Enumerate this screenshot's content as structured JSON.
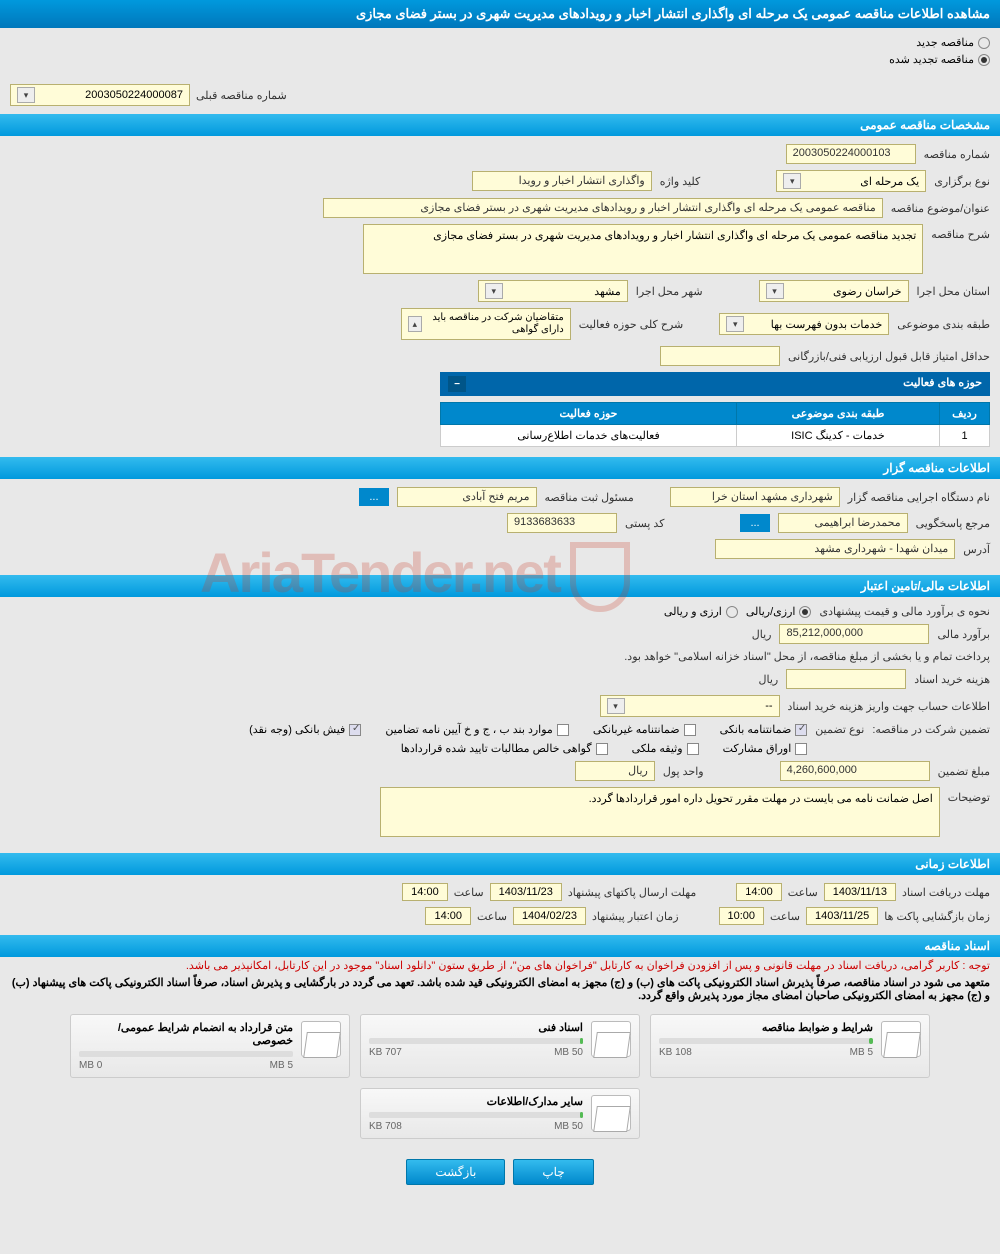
{
  "page_title": "مشاهده اطلاعات مناقصه عمومی یک مرحله ای واگذاری انتشار اخبار و رویدادهای مدیریت شهری در بستر فضای مجازی",
  "status": {
    "new_label": "مناقصه جدید",
    "renewed_label": "مناقصه تجدید شده",
    "selected": "renewed"
  },
  "prev": {
    "label": "شماره مناقصه قبلی",
    "value": "2003050224000087"
  },
  "sections": {
    "general": "مشخصات مناقصه عمومی",
    "agency": "اطلاعات مناقصه گزار",
    "finance": "اطلاعات مالی/تامین اعتبار",
    "timing": "اطلاعات زمانی",
    "docs": "اسناد مناقصه"
  },
  "general": {
    "number_label": "شماره مناقصه",
    "number": "2003050224000103",
    "type_label": "نوع برگزاری",
    "type": "یک مرحله ای",
    "keyword_label": "کلید واژه",
    "keyword": "واگذاری انتشار اخبار و رویدا",
    "subject_label": "عنوان/موضوع مناقصه",
    "subject": "مناقصه عمومی یک مرحله ای واگذاری انتشار اخبار و رویدادهای مدیریت شهری در بستر فضای مجازی",
    "desc_label": "شرح مناقصه",
    "desc": "تجدید مناقصه عمومی یک مرحله ای واگذاری انتشار اخبار و رویدادهای مدیریت شهری در بستر فضای مجازی",
    "province_label": "استان محل اجرا",
    "province": "خراسان رضوی",
    "city_label": "شهر محل اجرا",
    "city": "مشهد",
    "category_label": "طبقه بندی موضوعی",
    "category": "خدمات بدون فهرست بها",
    "activity_desc_label": "شرح کلی حوزه فعالیت",
    "activity_desc": "متقاضیان شرکت در مناقصه باید دارای گواهی",
    "min_score_label": "حداقل امتیاز قابل قبول ارزیابی فنی/بازرگانی",
    "min_score": ""
  },
  "activity_table": {
    "title": "حوزه های فعالیت",
    "cols": [
      "ردیف",
      "طبقه بندی موضوعی",
      "حوزه فعالیت"
    ],
    "rows": [
      [
        "1",
        "خدمات - کدینگ ISIC",
        "فعالیت‌های خدمات اطلاع‌رسانی"
      ]
    ]
  },
  "agency": {
    "exec_label": "نام دستگاه اجرایی مناقصه گزار",
    "exec": "شهرداری مشهد استان خرا",
    "registrar_label": "مسئول ثبت مناقصه",
    "registrar": "مریم فتح آبادی",
    "contact_label": "مرجع پاسخگویی",
    "contact": "محمدرضا ابراهیمی",
    "postal_label": "کد پستی",
    "postal": "9133683633",
    "address_label": "آدرس",
    "address": "میدان شهدا - شهرداری مشهد",
    "dots": "..."
  },
  "finance": {
    "method_label": "نحوه ی برآورد مالی و قیمت پیشنهادی",
    "opt_rial": "ارزی/ریالی",
    "opt_foreign": "ارزی و ریالی",
    "estimate_label": "برآورد مالی",
    "estimate": "85,212,000,000",
    "currency": "ریال",
    "treasury_note": "پرداخت تمام و یا بخشی از مبلغ مناقصه، از محل \"اسناد خزانه اسلامی\" خواهد بود.",
    "doc_fee_label": "هزینه خرید اسناد",
    "doc_fee": "",
    "account_label": "اطلاعات حساب جهت واریز هزینه خرید اسناد",
    "account": "--",
    "guarantee_label": "تضمین شرکت در مناقصه:",
    "guarantee_type_label": "نوع تضمین",
    "checks": {
      "bank_guarantee": "ضمانتنامه بانکی",
      "nonbank_guarantee": "ضمانتنامه غیربانکی",
      "regs": "موارد بند ب ، ج و خ آیین نامه تضامین",
      "cash": "فیش بانکی (وجه نقد)",
      "bonds": "اوراق مشارکت",
      "property": "وثیقه ملکی",
      "receivables": "گواهی خالص مطالبات تایید شده قراردادها"
    },
    "guarantee_amount_label": "مبلغ تضمین",
    "guarantee_amount": "4,260,600,000",
    "unit_label": "واحد پول",
    "unit": "ریال",
    "notes_label": "توضیحات",
    "notes": "اصل ضمانت نامه می بایست در مهلت مقرر تحویل داره امور قراردادها گردد."
  },
  "timing": {
    "receive_label": "مهلت دریافت اسناد",
    "receive_date": "1403/11/13",
    "receive_time_label": "ساعت",
    "receive_time": "14:00",
    "submit_label": "مهلت ارسال پاکتهای پیشنهاد",
    "submit_date": "1403/11/23",
    "submit_time": "14:00",
    "open_label": "زمان بازگشایی پاکت ها",
    "open_date": "1403/11/25",
    "open_time": "10:00",
    "validity_label": "زمان اعتبار پیشنهاد",
    "validity_date": "1404/02/23",
    "validity_time": "14:00"
  },
  "docs": {
    "note1": "توجه : کاربر گرامی، دریافت اسناد در مهلت قانونی و پس از افزودن فراخوان به کارتابل \"فراخوان های من\"، از طریق ستون \"دانلود اسناد\" موجود در این کارتابل، امکانپذیر می باشد.",
    "note2": "متعهد می شود در اسناد مناقصه، صرفاً پذیرش اسناد الکترونیکی پاکت های (ب) و (ج) مجهز به امضای الکترونیکی قید شده باشد. تعهد می گردد در بارگشایی و پذیرش اسناد، صرفاً اسناد الکترونیکی پاکت های پیشنهاد (ب) و (ج) مجهز به امضای الکترونیکی صاحبان امضای مجاز مورد پذیرش واقع گردد.",
    "items": [
      {
        "title": "شرایط و ضوابط مناقصه",
        "used": "108 KB",
        "max": "5 MB",
        "pct": 2
      },
      {
        "title": "اسناد فنی",
        "used": "707 KB",
        "max": "50 MB",
        "pct": 1.5
      },
      {
        "title": "متن قرارداد به انضمام شرایط عمومی/خصوصی",
        "used": "0 MB",
        "max": "5 MB",
        "pct": 0
      },
      {
        "title": "سایر مدارک/اطلاعات",
        "used": "708 KB",
        "max": "50 MB",
        "pct": 1.5
      }
    ]
  },
  "footer": {
    "print": "چاپ",
    "back": "بازگشت"
  },
  "watermark": "AriaTender.net"
}
